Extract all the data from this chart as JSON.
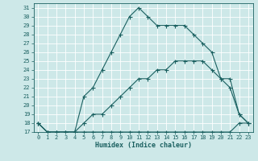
{
  "xlabel": "Humidex (Indice chaleur)",
  "xlim": [
    -0.5,
    23.5
  ],
  "ylim": [
    17,
    31.5
  ],
  "xticks": [
    0,
    1,
    2,
    3,
    4,
    5,
    6,
    7,
    8,
    9,
    10,
    11,
    12,
    13,
    14,
    15,
    16,
    17,
    18,
    19,
    20,
    21,
    22,
    23
  ],
  "yticks": [
    17,
    18,
    19,
    20,
    21,
    22,
    23,
    24,
    25,
    26,
    27,
    28,
    29,
    30,
    31
  ],
  "bg_color": "#cde8e8",
  "line_color": "#1a6060",
  "grid_color": "#b8d8d8",
  "line1_x": [
    0,
    1,
    2,
    3,
    4,
    5,
    6,
    7,
    8,
    9,
    10,
    11,
    12,
    13,
    14,
    15,
    16,
    17,
    18,
    19,
    20,
    21,
    22,
    23
  ],
  "line1_y": [
    18,
    17,
    17,
    17,
    17,
    21,
    22,
    24,
    26,
    28,
    30,
    31,
    30,
    29,
    29,
    29,
    29,
    28,
    27,
    26,
    23,
    23,
    19,
    18
  ],
  "line2_x": [
    0,
    1,
    2,
    3,
    4,
    5,
    6,
    7,
    8,
    9,
    10,
    11,
    12,
    13,
    14,
    15,
    16,
    17,
    18,
    19,
    20,
    21,
    22,
    23
  ],
  "line2_y": [
    18,
    17,
    17,
    17,
    17,
    18,
    19,
    19,
    20,
    21,
    22,
    23,
    23,
    24,
    24,
    25,
    25,
    25,
    25,
    24,
    23,
    22,
    19,
    18
  ],
  "line3_x": [
    0,
    1,
    2,
    3,
    4,
    5,
    6,
    7,
    8,
    9,
    10,
    11,
    12,
    13,
    14,
    15,
    16,
    17,
    18,
    19,
    20,
    21,
    22,
    23
  ],
  "line3_y": [
    18,
    17,
    17,
    17,
    17,
    17,
    17,
    17,
    17,
    17,
    17,
    17,
    17,
    17,
    17,
    17,
    17,
    17,
    17,
    17,
    17,
    17,
    18,
    18
  ]
}
